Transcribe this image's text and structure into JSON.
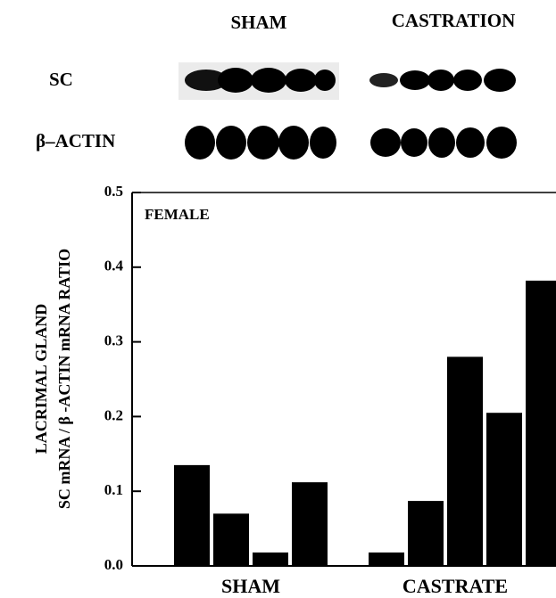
{
  "blot": {
    "columns": [
      "SHAM",
      "CASTRATION"
    ],
    "rows": [
      "SC",
      "β–ACTIN"
    ]
  },
  "chart_data": {
    "type": "bar",
    "annotation": "FEMALE",
    "y_label": [
      "LACRIMAL GLAND",
      "SC mRNA / β -ACTIN mRNA RATIO"
    ],
    "groups": [
      {
        "name": "SHAM",
        "values": [
          0.135,
          0.07,
          0.018,
          0.112
        ]
      },
      {
        "name": "CASTRATE",
        "values": [
          0.018,
          0.087,
          0.28,
          0.205,
          0.382
        ]
      }
    ],
    "color": "#000000",
    "ylim": [
      0,
      0.5
    ],
    "yticks": [
      {
        "value": 0,
        "label": "0.0"
      },
      0.1,
      0.2,
      0.3,
      0.4,
      0.5
    ]
  }
}
